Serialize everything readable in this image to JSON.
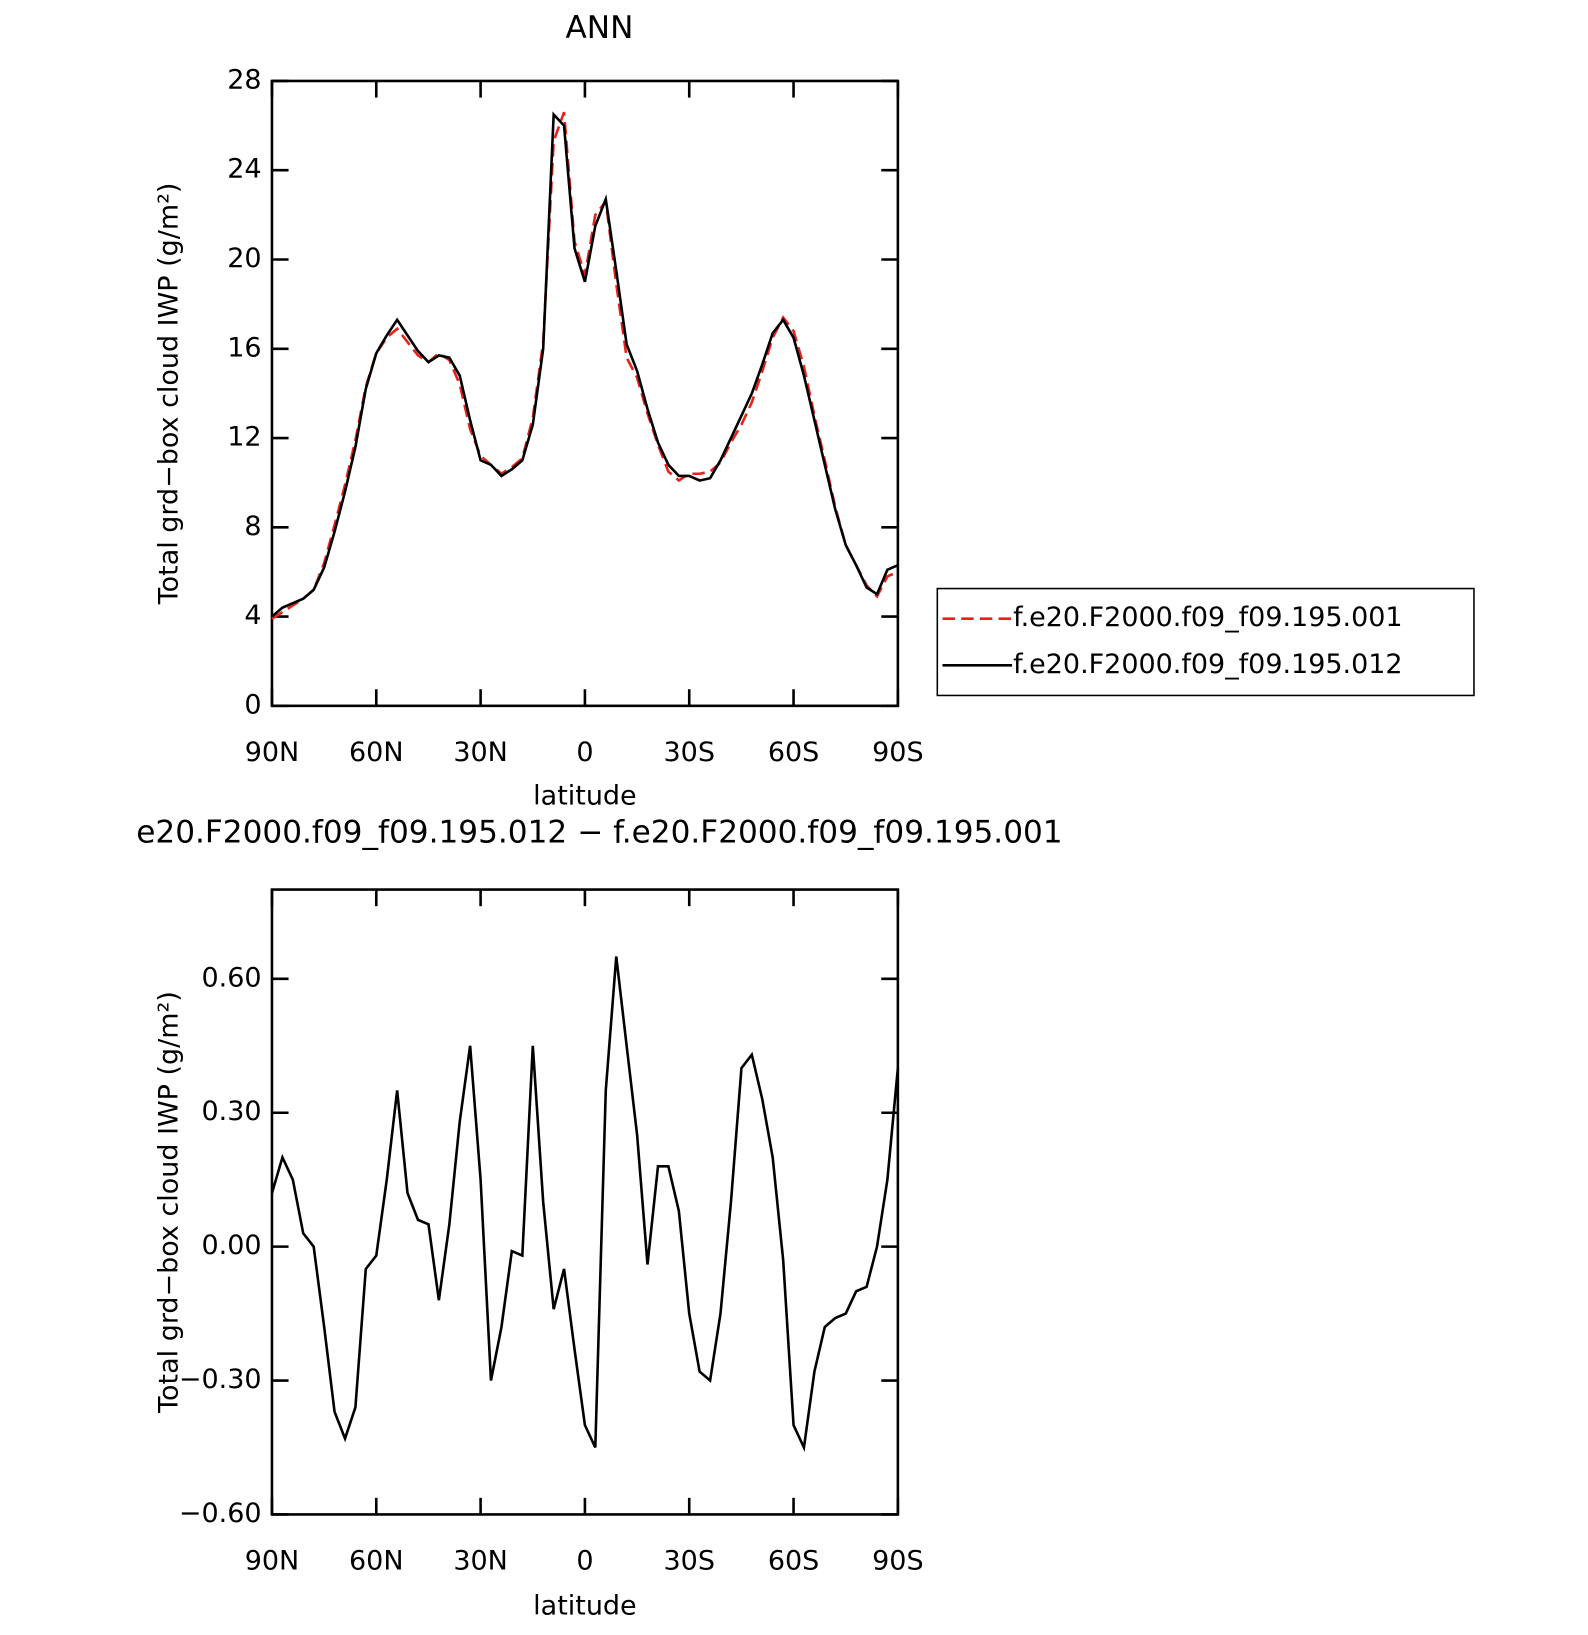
{
  "chart_data": [
    {
      "type": "line",
      "title": "ANN",
      "xlabel": "latitude",
      "ylabel": "Total grd−box cloud IWP (g/m²)",
      "xlim": [
        90,
        -90
      ],
      "xticks": [
        {
          "value": 90,
          "label": "90N"
        },
        {
          "value": 60,
          "label": "60N"
        },
        {
          "value": 30,
          "label": "30N"
        },
        0,
        {
          "value": -30,
          "label": "30S"
        },
        {
          "value": -60,
          "label": "60S"
        },
        {
          "value": -90,
          "label": "90S"
        }
      ],
      "ylim": [
        0,
        28
      ],
      "yticks": [
        0,
        4,
        8,
        12,
        16,
        20,
        24,
        28
      ],
      "x": [
        90,
        87,
        84,
        81,
        78,
        75,
        72,
        69,
        66,
        63,
        60,
        57,
        54,
        51,
        48,
        45,
        42,
        39,
        36,
        33,
        30,
        27,
        24,
        21,
        18,
        15,
        12,
        9,
        6,
        3,
        0,
        -3,
        -6,
        -9,
        -12,
        -15,
        -18,
        -21,
        -24,
        -27,
        -30,
        -33,
        -36,
        -39,
        -42,
        -45,
        -48,
        -51,
        -54,
        -57,
        -60,
        -63,
        -66,
        -69,
        -72,
        -75,
        -78,
        -81,
        -84,
        -87,
        -90
      ],
      "series": [
        {
          "name": "f.e20.F2000.f09_f09.195.001",
          "color": "#e8221b",
          "dash": true,
          "values": [
            3.9,
            4.2,
            4.5,
            4.8,
            5.2,
            6.4,
            8.1,
            9.9,
            11.9,
            14.3,
            15.8,
            16.5,
            16.9,
            16.3,
            15.7,
            15.4,
            15.8,
            15.5,
            14.4,
            12.4,
            11.2,
            10.8,
            10.4,
            10.7,
            11.1,
            12.9,
            16.3,
            25.3,
            26.6,
            20.8,
            19.3,
            22.0,
            22.6,
            18.9,
            15.6,
            14.7,
            13.1,
            11.7,
            10.5,
            10.1,
            10.4,
            10.4,
            10.5,
            10.9,
            11.8,
            12.6,
            13.6,
            15.0,
            16.5,
            17.4,
            16.8,
            15.2,
            13.0,
            11.0,
            8.9,
            7.2,
            6.3,
            5.4,
            4.9,
            5.8,
            6.0
          ]
        },
        {
          "name": "f.e20.F2000.f09_f09.195.012",
          "color": "#000000",
          "dash": false,
          "values": [
            4.0,
            4.4,
            4.6,
            4.8,
            5.2,
            6.2,
            7.8,
            9.6,
            11.6,
            14.2,
            15.8,
            16.6,
            17.3,
            16.6,
            15.9,
            15.4,
            15.7,
            15.6,
            14.8,
            12.8,
            11.0,
            10.8,
            10.3,
            10.6,
            11.0,
            12.6,
            16.0,
            26.5,
            26.0,
            20.5,
            19.0,
            21.5,
            22.7,
            19.5,
            16.2,
            15.0,
            13.3,
            11.8,
            10.8,
            10.3,
            10.3,
            10.1,
            10.2,
            11.0,
            12.0,
            13.0,
            14.0,
            15.3,
            16.7,
            17.3,
            16.5,
            14.8,
            12.8,
            10.8,
            8.8,
            7.2,
            6.3,
            5.3,
            5.0,
            6.1,
            6.3
          ]
        }
      ]
    },
    {
      "type": "line",
      "title": "e20.F2000.f09_f09.195.012 − f.e20.F2000.f09_f09.195.001",
      "xlabel": "latitude",
      "ylabel": "Total grd−box cloud IWP (g/m²)",
      "xlim": [
        90,
        -90
      ],
      "xticks": [
        {
          "value": 90,
          "label": "90N"
        },
        {
          "value": 60,
          "label": "60N"
        },
        {
          "value": 30,
          "label": "30N"
        },
        0,
        {
          "value": -30,
          "label": "30S"
        },
        {
          "value": -60,
          "label": "60S"
        },
        {
          "value": -90,
          "label": "90S"
        }
      ],
      "ylim": [
        -0.6,
        0.8
      ],
      "yticks": [
        {
          "value": -0.6,
          "label": "−0.60"
        },
        {
          "value": -0.3,
          "label": "−0.30"
        },
        {
          "value": 0,
          "label": "0.00"
        },
        {
          "value": 0.3,
          "label": "0.30"
        },
        {
          "value": 0.6,
          "label": "0.60"
        }
      ],
      "x": [
        90,
        87,
        84,
        81,
        78,
        75,
        72,
        69,
        66,
        63,
        60,
        57,
        54,
        51,
        48,
        45,
        42,
        39,
        36,
        33,
        30,
        27,
        24,
        21,
        18,
        15,
        12,
        9,
        6,
        3,
        0,
        -3,
        -6,
        -9,
        -12,
        -15,
        -18,
        -21,
        -24,
        -27,
        -30,
        -33,
        -36,
        -39,
        -42,
        -45,
        -48,
        -51,
        -54,
        -57,
        -60,
        -63,
        -66,
        -69,
        -72,
        -75,
        -78,
        -81,
        -84,
        -87,
        -90
      ],
      "color": "#000000",
      "values": [
        0.12,
        0.2,
        0.15,
        0.03,
        0.0,
        -0.18,
        -0.37,
        -0.43,
        -0.36,
        -0.05,
        -0.02,
        0.15,
        0.35,
        0.12,
        0.06,
        0.05,
        -0.12,
        0.05,
        0.28,
        0.45,
        0.15,
        -0.3,
        -0.18,
        -0.01,
        -0.02,
        0.45,
        0.1,
        -0.14,
        -0.05,
        -0.23,
        -0.4,
        -0.45,
        0.35,
        0.65,
        0.45,
        0.25,
        -0.04,
        0.18,
        0.18,
        0.08,
        -0.15,
        -0.28,
        -0.3,
        -0.15,
        0.1,
        0.4,
        0.43,
        0.33,
        0.2,
        -0.03,
        -0.4,
        -0.45,
        -0.28,
        -0.18,
        -0.16,
        -0.15,
        -0.1,
        -0.09,
        0.0,
        0.15,
        0.4
      ]
    }
  ]
}
